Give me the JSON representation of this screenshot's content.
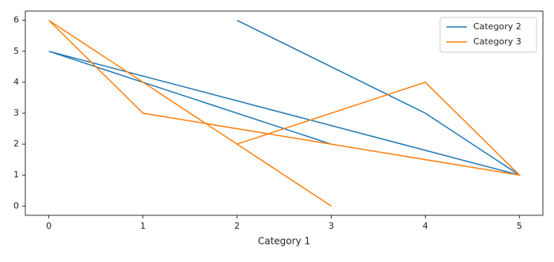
{
  "chart_data": {
    "type": "line",
    "xlabel": "Category 1",
    "xlim": [
      -0.25,
      5.25
    ],
    "xticks": [
      0,
      1,
      2,
      3,
      4,
      5
    ],
    "ylim": [
      -0.3,
      6.3
    ],
    "yticks": [
      0,
      1,
      2,
      3,
      4,
      5,
      6
    ],
    "legend": "upper right",
    "series": [
      {
        "name": "Category 2",
        "color": "#1f77b4",
        "x": [
          2,
          4,
          5,
          0,
          1,
          3
        ],
        "values": [
          6,
          3,
          1,
          5,
          4,
          2
        ]
      },
      {
        "name": "Category 3",
        "color": "#ff7f0e",
        "x": [
          2,
          4,
          5,
          3,
          1,
          0,
          3
        ],
        "values": [
          2,
          4,
          1,
          2,
          3,
          6,
          0
        ]
      }
    ]
  }
}
